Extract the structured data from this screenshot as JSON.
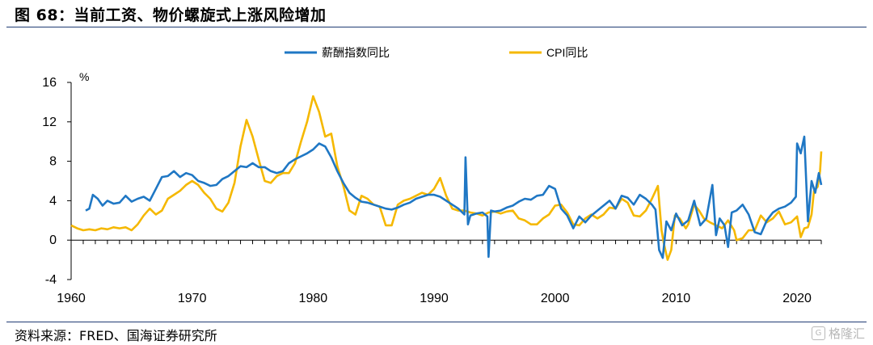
{
  "title": "图 68：当前工资、物价螺旋式上涨风险增加",
  "source": "资料来源：FRED、国海证券研究所",
  "watermark": {
    "text": "格隆汇",
    "icon": "gelonghui-logo-icon"
  },
  "colors": {
    "wage": "#1f77c4",
    "cpi": "#f5b800",
    "axis": "#000000"
  },
  "chart_data": {
    "type": "line",
    "title": "",
    "xlabel": "",
    "ylabel": "%",
    "xlim": [
      1960,
      2022
    ],
    "ylim": [
      -4,
      16
    ],
    "xticks": [
      1960,
      1970,
      1980,
      1990,
      2000,
      2010,
      2020
    ],
    "yticks": [
      -4,
      0,
      4,
      8,
      12,
      16
    ],
    "grid": false,
    "legend": "top-center",
    "series": [
      {
        "name": "薪酬指数同比",
        "color": "#1f77c4",
        "points": [
          [
            1961.2,
            3
          ],
          [
            1961.5,
            3.2
          ],
          [
            1961.8,
            4.6
          ],
          [
            1962.2,
            4.2
          ],
          [
            1962.6,
            3.5
          ],
          [
            1963,
            4.0
          ],
          [
            1963.5,
            3.7
          ],
          [
            1964,
            3.8
          ],
          [
            1964.5,
            4.5
          ],
          [
            1965,
            3.9
          ],
          [
            1965.5,
            4.2
          ],
          [
            1966,
            4.4
          ],
          [
            1966.5,
            4.0
          ],
          [
            1967,
            5.2
          ],
          [
            1967.5,
            6.4
          ],
          [
            1968,
            6.5
          ],
          [
            1968.5,
            7.0
          ],
          [
            1969,
            6.4
          ],
          [
            1969.5,
            6.8
          ],
          [
            1970,
            6.6
          ],
          [
            1970.5,
            6.0
          ],
          [
            1971,
            5.8
          ],
          [
            1971.5,
            5.5
          ],
          [
            1972,
            5.6
          ],
          [
            1972.5,
            6.2
          ],
          [
            1973,
            6.5
          ],
          [
            1973.5,
            7.0
          ],
          [
            1974,
            7.5
          ],
          [
            1974.5,
            7.4
          ],
          [
            1975,
            7.8
          ],
          [
            1975.5,
            7.4
          ],
          [
            1976,
            7.4
          ],
          [
            1976.5,
            7.0
          ],
          [
            1977,
            6.8
          ],
          [
            1977.5,
            7.0
          ],
          [
            1978,
            7.8
          ],
          [
            1978.5,
            8.2
          ],
          [
            1979,
            8.5
          ],
          [
            1979.5,
            8.8
          ],
          [
            1980,
            9.2
          ],
          [
            1980.5,
            9.8
          ],
          [
            1981,
            9.5
          ],
          [
            1981.5,
            8.4
          ],
          [
            1982,
            7.0
          ],
          [
            1982.5,
            5.8
          ],
          [
            1983,
            4.8
          ],
          [
            1983.5,
            4.3
          ],
          [
            1984,
            3.9
          ],
          [
            1984.5,
            3.8
          ],
          [
            1985,
            3.6
          ],
          [
            1985.5,
            3.4
          ],
          [
            1986,
            3.2
          ],
          [
            1986.5,
            3.1
          ],
          [
            1987,
            3.3
          ],
          [
            1987.5,
            3.6
          ],
          [
            1988,
            3.8
          ],
          [
            1988.5,
            4.2
          ],
          [
            1989,
            4.4
          ],
          [
            1989.5,
            4.6
          ],
          [
            1990,
            4.6
          ],
          [
            1990.5,
            4.4
          ],
          [
            1991,
            4.0
          ],
          [
            1991.5,
            3.6
          ],
          [
            1992,
            3.2
          ],
          [
            1992.5,
            2.6
          ],
          [
            1992.6,
            8.4
          ],
          [
            1992.8,
            1.6
          ],
          [
            1993,
            2.5
          ],
          [
            1993.5,
            2.7
          ],
          [
            1994,
            2.8
          ],
          [
            1994.4,
            2.4
          ],
          [
            1994.5,
            -1.7
          ],
          [
            1994.7,
            3.0
          ],
          [
            1995,
            2.9
          ],
          [
            1995.5,
            3.0
          ],
          [
            1996,
            3.3
          ],
          [
            1996.5,
            3.5
          ],
          [
            1997,
            3.9
          ],
          [
            1997.5,
            4.2
          ],
          [
            1998,
            4.1
          ],
          [
            1998.5,
            4.5
          ],
          [
            1999,
            4.6
          ],
          [
            1999.5,
            5.5
          ],
          [
            2000,
            5.2
          ],
          [
            2000.5,
            3.2
          ],
          [
            2001,
            2.5
          ],
          [
            2001.5,
            1.2
          ],
          [
            2002,
            2.4
          ],
          [
            2002.5,
            1.8
          ],
          [
            2003,
            2.5
          ],
          [
            2003.5,
            3.0
          ],
          [
            2004,
            3.5
          ],
          [
            2004.5,
            4.0
          ],
          [
            2005,
            3.2
          ],
          [
            2005.5,
            4.5
          ],
          [
            2006,
            4.3
          ],
          [
            2006.5,
            3.6
          ],
          [
            2007,
            4.6
          ],
          [
            2007.5,
            4.2
          ],
          [
            2008,
            3.6
          ],
          [
            2008.3,
            3.1
          ],
          [
            2008.6,
            -1.0
          ],
          [
            2008.9,
            -1.8
          ],
          [
            2009.2,
            1.9
          ],
          [
            2009.6,
            1.0
          ],
          [
            2010,
            2.7
          ],
          [
            2010.5,
            1.5
          ],
          [
            2011,
            2.0
          ],
          [
            2011.5,
            4.0
          ],
          [
            2012,
            1.5
          ],
          [
            2012.5,
            2.2
          ],
          [
            2013,
            5.6
          ],
          [
            2013.3,
            0.5
          ],
          [
            2013.6,
            2.2
          ],
          [
            2014,
            1.5
          ],
          [
            2014.3,
            -0.7
          ],
          [
            2014.6,
            2.8
          ],
          [
            2015,
            3.0
          ],
          [
            2015.5,
            3.6
          ],
          [
            2016,
            2.6
          ],
          [
            2016.5,
            0.8
          ],
          [
            2017,
            0.6
          ],
          [
            2017.5,
            2.0
          ],
          [
            2018,
            2.8
          ],
          [
            2018.5,
            3.2
          ],
          [
            2019,
            3.4
          ],
          [
            2019.5,
            3.8
          ],
          [
            2019.9,
            4.4
          ],
          [
            2020,
            9.8
          ],
          [
            2020.3,
            8.8
          ],
          [
            2020.6,
            10.5
          ],
          [
            2020.9,
            1.9
          ],
          [
            2021.2,
            6.0
          ],
          [
            2021.5,
            4.8
          ],
          [
            2021.8,
            6.8
          ],
          [
            2022,
            5.6
          ]
        ]
      },
      {
        "name": "CPI同比",
        "color": "#f5b800",
        "points": [
          [
            1960,
            1.5
          ],
          [
            1960.5,
            1.2
          ],
          [
            1961,
            1.0
          ],
          [
            1961.5,
            1.1
          ],
          [
            1962,
            1.0
          ],
          [
            1962.5,
            1.2
          ],
          [
            1963,
            1.1
          ],
          [
            1963.5,
            1.3
          ],
          [
            1964,
            1.2
          ],
          [
            1964.5,
            1.3
          ],
          [
            1965,
            1.0
          ],
          [
            1965.5,
            1.6
          ],
          [
            1966,
            2.5
          ],
          [
            1966.5,
            3.2
          ],
          [
            1967,
            2.6
          ],
          [
            1967.5,
            3.0
          ],
          [
            1968,
            4.2
          ],
          [
            1968.5,
            4.6
          ],
          [
            1969,
            5.0
          ],
          [
            1969.5,
            5.6
          ],
          [
            1970,
            6.0
          ],
          [
            1970.5,
            5.6
          ],
          [
            1971,
            4.8
          ],
          [
            1971.5,
            4.2
          ],
          [
            1972,
            3.2
          ],
          [
            1972.5,
            2.9
          ],
          [
            1973,
            3.8
          ],
          [
            1973.5,
            5.8
          ],
          [
            1974,
            9.5
          ],
          [
            1974.5,
            12.2
          ],
          [
            1975,
            10.5
          ],
          [
            1975.5,
            8.2
          ],
          [
            1976,
            6.0
          ],
          [
            1976.5,
            5.8
          ],
          [
            1977,
            6.5
          ],
          [
            1977.5,
            6.8
          ],
          [
            1978,
            6.8
          ],
          [
            1978.5,
            7.8
          ],
          [
            1979,
            10.0
          ],
          [
            1979.5,
            12.0
          ],
          [
            1980,
            14.6
          ],
          [
            1980.5,
            13.0
          ],
          [
            1981,
            10.5
          ],
          [
            1981.5,
            10.8
          ],
          [
            1982,
            7.5
          ],
          [
            1982.5,
            5.5
          ],
          [
            1983,
            3.0
          ],
          [
            1983.5,
            2.6
          ],
          [
            1984,
            4.5
          ],
          [
            1984.5,
            4.2
          ],
          [
            1985,
            3.6
          ],
          [
            1985.5,
            3.4
          ],
          [
            1986,
            1.5
          ],
          [
            1986.5,
            1.5
          ],
          [
            1987,
            3.6
          ],
          [
            1987.5,
            4.0
          ],
          [
            1988,
            4.2
          ],
          [
            1988.5,
            4.5
          ],
          [
            1989,
            4.8
          ],
          [
            1989.5,
            4.6
          ],
          [
            1990,
            5.2
          ],
          [
            1990.5,
            6.3
          ],
          [
            1991,
            4.5
          ],
          [
            1991.5,
            3.2
          ],
          [
            1992,
            3.0
          ],
          [
            1992.5,
            3.0
          ],
          [
            1993,
            2.8
          ],
          [
            1993.5,
            2.7
          ],
          [
            1994,
            2.5
          ],
          [
            1994.5,
            2.8
          ],
          [
            1995,
            2.9
          ],
          [
            1995.5,
            2.7
          ],
          [
            1996,
            2.9
          ],
          [
            1996.5,
            3.0
          ],
          [
            1997,
            2.2
          ],
          [
            1997.5,
            2.0
          ],
          [
            1998,
            1.6
          ],
          [
            1998.5,
            1.6
          ],
          [
            1999,
            2.2
          ],
          [
            1999.5,
            2.6
          ],
          [
            2000,
            3.5
          ],
          [
            2000.5,
            3.6
          ],
          [
            2001,
            2.8
          ],
          [
            2001.5,
            1.6
          ],
          [
            2002,
            1.5
          ],
          [
            2002.5,
            2.2
          ],
          [
            2003,
            2.6
          ],
          [
            2003.5,
            2.2
          ],
          [
            2004,
            2.6
          ],
          [
            2004.5,
            3.3
          ],
          [
            2005,
            3.2
          ],
          [
            2005.5,
            4.2
          ],
          [
            2006,
            3.8
          ],
          [
            2006.5,
            2.5
          ],
          [
            2007,
            2.4
          ],
          [
            2007.5,
            3.0
          ],
          [
            2008,
            4.2
          ],
          [
            2008.5,
            5.5
          ],
          [
            2008.8,
            1.0
          ],
          [
            2009,
            -0.4
          ],
          [
            2009.3,
            -2.0
          ],
          [
            2009.6,
            -1.0
          ],
          [
            2009.9,
            2.5
          ],
          [
            2010.3,
            2.2
          ],
          [
            2010.8,
            1.2
          ],
          [
            2011,
            1.6
          ],
          [
            2011.5,
            3.6
          ],
          [
            2011.9,
            3.0
          ],
          [
            2012.3,
            2.2
          ],
          [
            2012.8,
            1.8
          ],
          [
            2013.3,
            1.5
          ],
          [
            2013.8,
            1.2
          ],
          [
            2014.3,
            2.0
          ],
          [
            2014.8,
            1.0
          ],
          [
            2015,
            0.0
          ],
          [
            2015.5,
            0.2
          ],
          [
            2016,
            1.0
          ],
          [
            2016.5,
            1.0
          ],
          [
            2017,
            2.5
          ],
          [
            2017.5,
            1.8
          ],
          [
            2018,
            2.2
          ],
          [
            2018.5,
            2.9
          ],
          [
            2019,
            1.6
          ],
          [
            2019.5,
            1.8
          ],
          [
            2020,
            2.4
          ],
          [
            2020.3,
            0.3
          ],
          [
            2020.6,
            1.2
          ],
          [
            2020.9,
            1.3
          ],
          [
            2021.2,
            2.6
          ],
          [
            2021.4,
            5.0
          ],
          [
            2021.7,
            5.4
          ],
          [
            2021.9,
            7.0
          ],
          [
            2022,
            9.0
          ]
        ]
      }
    ]
  }
}
